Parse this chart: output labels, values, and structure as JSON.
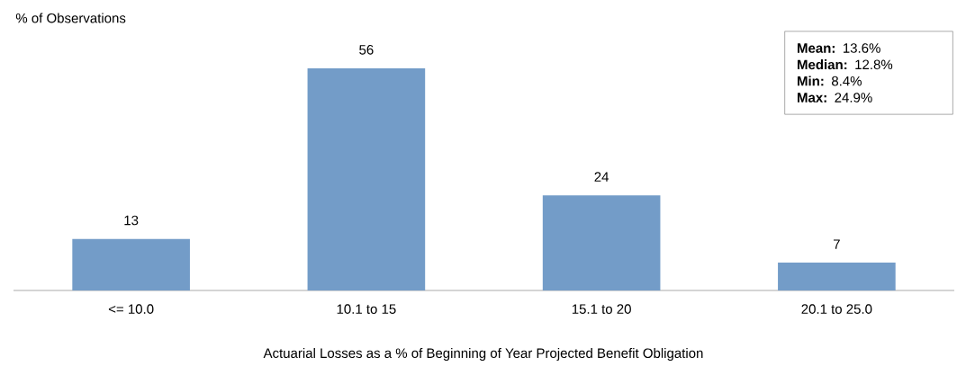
{
  "chart_data": {
    "type": "bar",
    "ylabel": "% of Observations",
    "xlabel": "Actuarial Losses as a % of Beginning of Year Projected Benefit Obligation",
    "categories": [
      "<= 10.0",
      "10.1 to 15",
      "15.1 to 20",
      "20.1 to 25.0"
    ],
    "values": [
      13,
      56,
      24,
      7
    ],
    "color": "#739cc8",
    "data_labels": true,
    "annotations": [
      "**Mean:** 13.6%",
      "**Median:** 12.8%",
      "**Min:** 8.4%",
      "**Max:** 24.9%"
    ]
  }
}
